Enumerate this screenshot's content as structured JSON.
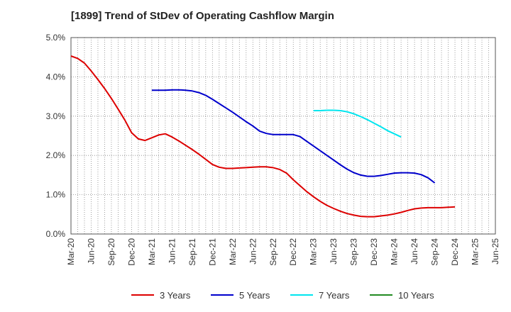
{
  "chart_data": {
    "type": "line",
    "title": "[1899]  Trend of StDev of Operating Cashflow Margin",
    "xlabel": "",
    "ylabel": "",
    "x_ticks": [
      "Mar-20",
      "Jun-20",
      "Sep-20",
      "Dec-20",
      "Mar-21",
      "Jun-21",
      "Sep-21",
      "Dec-21",
      "Mar-22",
      "Jun-22",
      "Sep-22",
      "Dec-22",
      "Mar-23",
      "Jun-23",
      "Sep-23",
      "Dec-23",
      "Mar-24",
      "Jun-24",
      "Sep-24",
      "Dec-24",
      "Mar-25",
      "Jun-25"
    ],
    "y_ticks": [
      "0.0%",
      "1.0%",
      "2.0%",
      "3.0%",
      "4.0%",
      "5.0%"
    ],
    "ylim": [
      0,
      5
    ],
    "y_unit": "%",
    "grid": "vertical dotted (monthly), horizontal dotted",
    "legend_position": "bottom",
    "series": [
      {
        "name": "3 Years",
        "color": "#dd0000",
        "points": [
          [
            "Mar-20",
            4.53
          ],
          [
            "Apr-20",
            4.47
          ],
          [
            "May-20",
            4.35
          ],
          [
            "Jun-20",
            4.15
          ],
          [
            "Jul-20",
            3.93
          ],
          [
            "Aug-20",
            3.7
          ],
          [
            "Sep-20",
            3.45
          ],
          [
            "Oct-20",
            3.18
          ],
          [
            "Nov-20",
            2.9
          ],
          [
            "Dec-20",
            2.58
          ],
          [
            "Jan-21",
            2.42
          ],
          [
            "Feb-21",
            2.38
          ],
          [
            "Mar-21",
            2.45
          ],
          [
            "Apr-21",
            2.52
          ],
          [
            "May-21",
            2.55
          ],
          [
            "Jun-21",
            2.47
          ],
          [
            "Jul-21",
            2.37
          ],
          [
            "Aug-21",
            2.26
          ],
          [
            "Sep-21",
            2.15
          ],
          [
            "Oct-21",
            2.03
          ],
          [
            "Nov-21",
            1.9
          ],
          [
            "Dec-21",
            1.77
          ],
          [
            "Jan-22",
            1.7
          ],
          [
            "Feb-22",
            1.67
          ],
          [
            "Mar-22",
            1.67
          ],
          [
            "Apr-22",
            1.68
          ],
          [
            "May-22",
            1.69
          ],
          [
            "Jun-22",
            1.7
          ],
          [
            "Jul-22",
            1.71
          ],
          [
            "Aug-22",
            1.71
          ],
          [
            "Sep-22",
            1.69
          ],
          [
            "Oct-22",
            1.64
          ],
          [
            "Nov-22",
            1.55
          ],
          [
            "Dec-22",
            1.38
          ],
          [
            "Jan-23",
            1.23
          ],
          [
            "Feb-23",
            1.08
          ],
          [
            "Mar-23",
            0.95
          ],
          [
            "Apr-23",
            0.83
          ],
          [
            "May-23",
            0.73
          ],
          [
            "Jun-23",
            0.65
          ],
          [
            "Jul-23",
            0.58
          ],
          [
            "Aug-23",
            0.52
          ],
          [
            "Sep-23",
            0.48
          ],
          [
            "Oct-23",
            0.45
          ],
          [
            "Nov-23",
            0.44
          ],
          [
            "Dec-23",
            0.44
          ],
          [
            "Jan-24",
            0.46
          ],
          [
            "Feb-24",
            0.48
          ],
          [
            "Mar-24",
            0.51
          ],
          [
            "Apr-24",
            0.55
          ],
          [
            "May-24",
            0.6
          ],
          [
            "Jun-24",
            0.64
          ],
          [
            "Jul-24",
            0.66
          ],
          [
            "Aug-24",
            0.67
          ],
          [
            "Sep-24",
            0.67
          ],
          [
            "Oct-24",
            0.67
          ],
          [
            "Nov-24",
            0.68
          ],
          [
            "Dec-24",
            0.69
          ]
        ]
      },
      {
        "name": "5 Years",
        "color": "#0000cc",
        "points": [
          [
            "Mar-21",
            3.66
          ],
          [
            "Apr-21",
            3.66
          ],
          [
            "May-21",
            3.66
          ],
          [
            "Jun-21",
            3.67
          ],
          [
            "Jul-21",
            3.67
          ],
          [
            "Aug-21",
            3.66
          ],
          [
            "Sep-21",
            3.64
          ],
          [
            "Oct-21",
            3.6
          ],
          [
            "Nov-21",
            3.53
          ],
          [
            "Dec-21",
            3.43
          ],
          [
            "Jan-22",
            3.32
          ],
          [
            "Feb-22",
            3.21
          ],
          [
            "Mar-22",
            3.1
          ],
          [
            "Apr-22",
            2.98
          ],
          [
            "May-22",
            2.86
          ],
          [
            "Jun-22",
            2.75
          ],
          [
            "Jul-22",
            2.62
          ],
          [
            "Aug-22",
            2.56
          ],
          [
            "Sep-22",
            2.53
          ],
          [
            "Oct-22",
            2.53
          ],
          [
            "Nov-22",
            2.53
          ],
          [
            "Dec-22",
            2.53
          ],
          [
            "Jan-23",
            2.48
          ],
          [
            "Feb-23",
            2.36
          ],
          [
            "Mar-23",
            2.24
          ],
          [
            "Apr-23",
            2.12
          ],
          [
            "May-23",
            2.0
          ],
          [
            "Jun-23",
            1.88
          ],
          [
            "Jul-23",
            1.76
          ],
          [
            "Aug-23",
            1.65
          ],
          [
            "Sep-23",
            1.56
          ],
          [
            "Oct-23",
            1.5
          ],
          [
            "Nov-23",
            1.47
          ],
          [
            "Dec-23",
            1.47
          ],
          [
            "Jan-24",
            1.49
          ],
          [
            "Feb-24",
            1.52
          ],
          [
            "Mar-24",
            1.55
          ],
          [
            "Apr-24",
            1.56
          ],
          [
            "May-24",
            1.56
          ],
          [
            "Jun-24",
            1.55
          ],
          [
            "Jul-24",
            1.51
          ],
          [
            "Aug-24",
            1.43
          ],
          [
            "Sep-24",
            1.3
          ]
        ]
      },
      {
        "name": "7 Years",
        "color": "#00e5ee",
        "points": [
          [
            "Mar-23",
            3.14
          ],
          [
            "Apr-23",
            3.14
          ],
          [
            "May-23",
            3.15
          ],
          [
            "Jun-23",
            3.15
          ],
          [
            "Jul-23",
            3.14
          ],
          [
            "Aug-23",
            3.11
          ],
          [
            "Sep-23",
            3.06
          ],
          [
            "Oct-23",
            2.99
          ],
          [
            "Nov-23",
            2.91
          ],
          [
            "Dec-23",
            2.82
          ],
          [
            "Jan-24",
            2.73
          ],
          [
            "Feb-24",
            2.63
          ],
          [
            "Mar-24",
            2.55
          ],
          [
            "Apr-24",
            2.47
          ]
        ]
      },
      {
        "name": "10 Years",
        "color": "#228b22",
        "points": []
      }
    ]
  }
}
